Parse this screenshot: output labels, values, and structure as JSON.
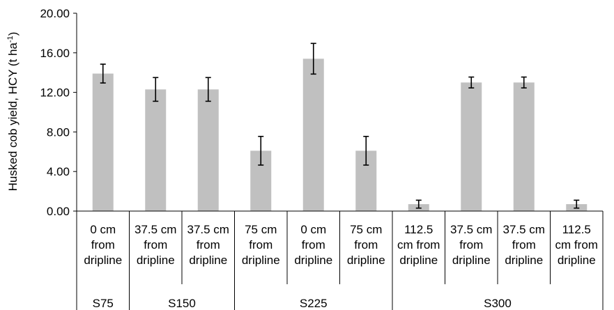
{
  "chart_data": {
    "type": "bar",
    "ylabel_main": "Husked cob yield, HCY (t ha",
    "ylabel_sup": "-1",
    "ylabel_close": ")",
    "ylim": [
      0,
      20
    ],
    "yticks": [
      "0.00",
      "4.00",
      "8.00",
      "12.00",
      "16.00",
      "20.00"
    ],
    "ytick_values": [
      0,
      4,
      8,
      12,
      16,
      20
    ],
    "grid": false,
    "legend": "none",
    "bar_color": "#c0c0c0",
    "categories": [
      [
        "0 cm",
        "from",
        "dripline"
      ],
      [
        "37.5 cm",
        "from",
        "dripline"
      ],
      [
        "37.5 cm",
        "from",
        "dripline"
      ],
      [
        "75 cm",
        "from",
        "dripline"
      ],
      [
        "0 cm",
        "from",
        "dripline"
      ],
      [
        "75 cm",
        "from",
        "dripline"
      ],
      [
        "112.5",
        "cm from",
        "dripline"
      ],
      [
        "37.5 cm",
        "from",
        "dripline"
      ],
      [
        "37.5 cm",
        "from",
        "dripline"
      ],
      [
        "112.5",
        "cm from",
        "dripline"
      ]
    ],
    "values": [
      13.9,
      12.3,
      12.3,
      6.1,
      15.4,
      6.1,
      0.7,
      13.0,
      13.0,
      0.7
    ],
    "errors": [
      0.95,
      1.2,
      1.2,
      1.45,
      1.55,
      1.45,
      0.4,
      0.55,
      0.55,
      0.4
    ],
    "groups": [
      {
        "label": "S75",
        "start": 0,
        "end": 0
      },
      {
        "label": "S150",
        "start": 1,
        "end": 2
      },
      {
        "label": "S225",
        "start": 3,
        "end": 5
      },
      {
        "label": "S300",
        "start": 6,
        "end": 9
      }
    ]
  }
}
